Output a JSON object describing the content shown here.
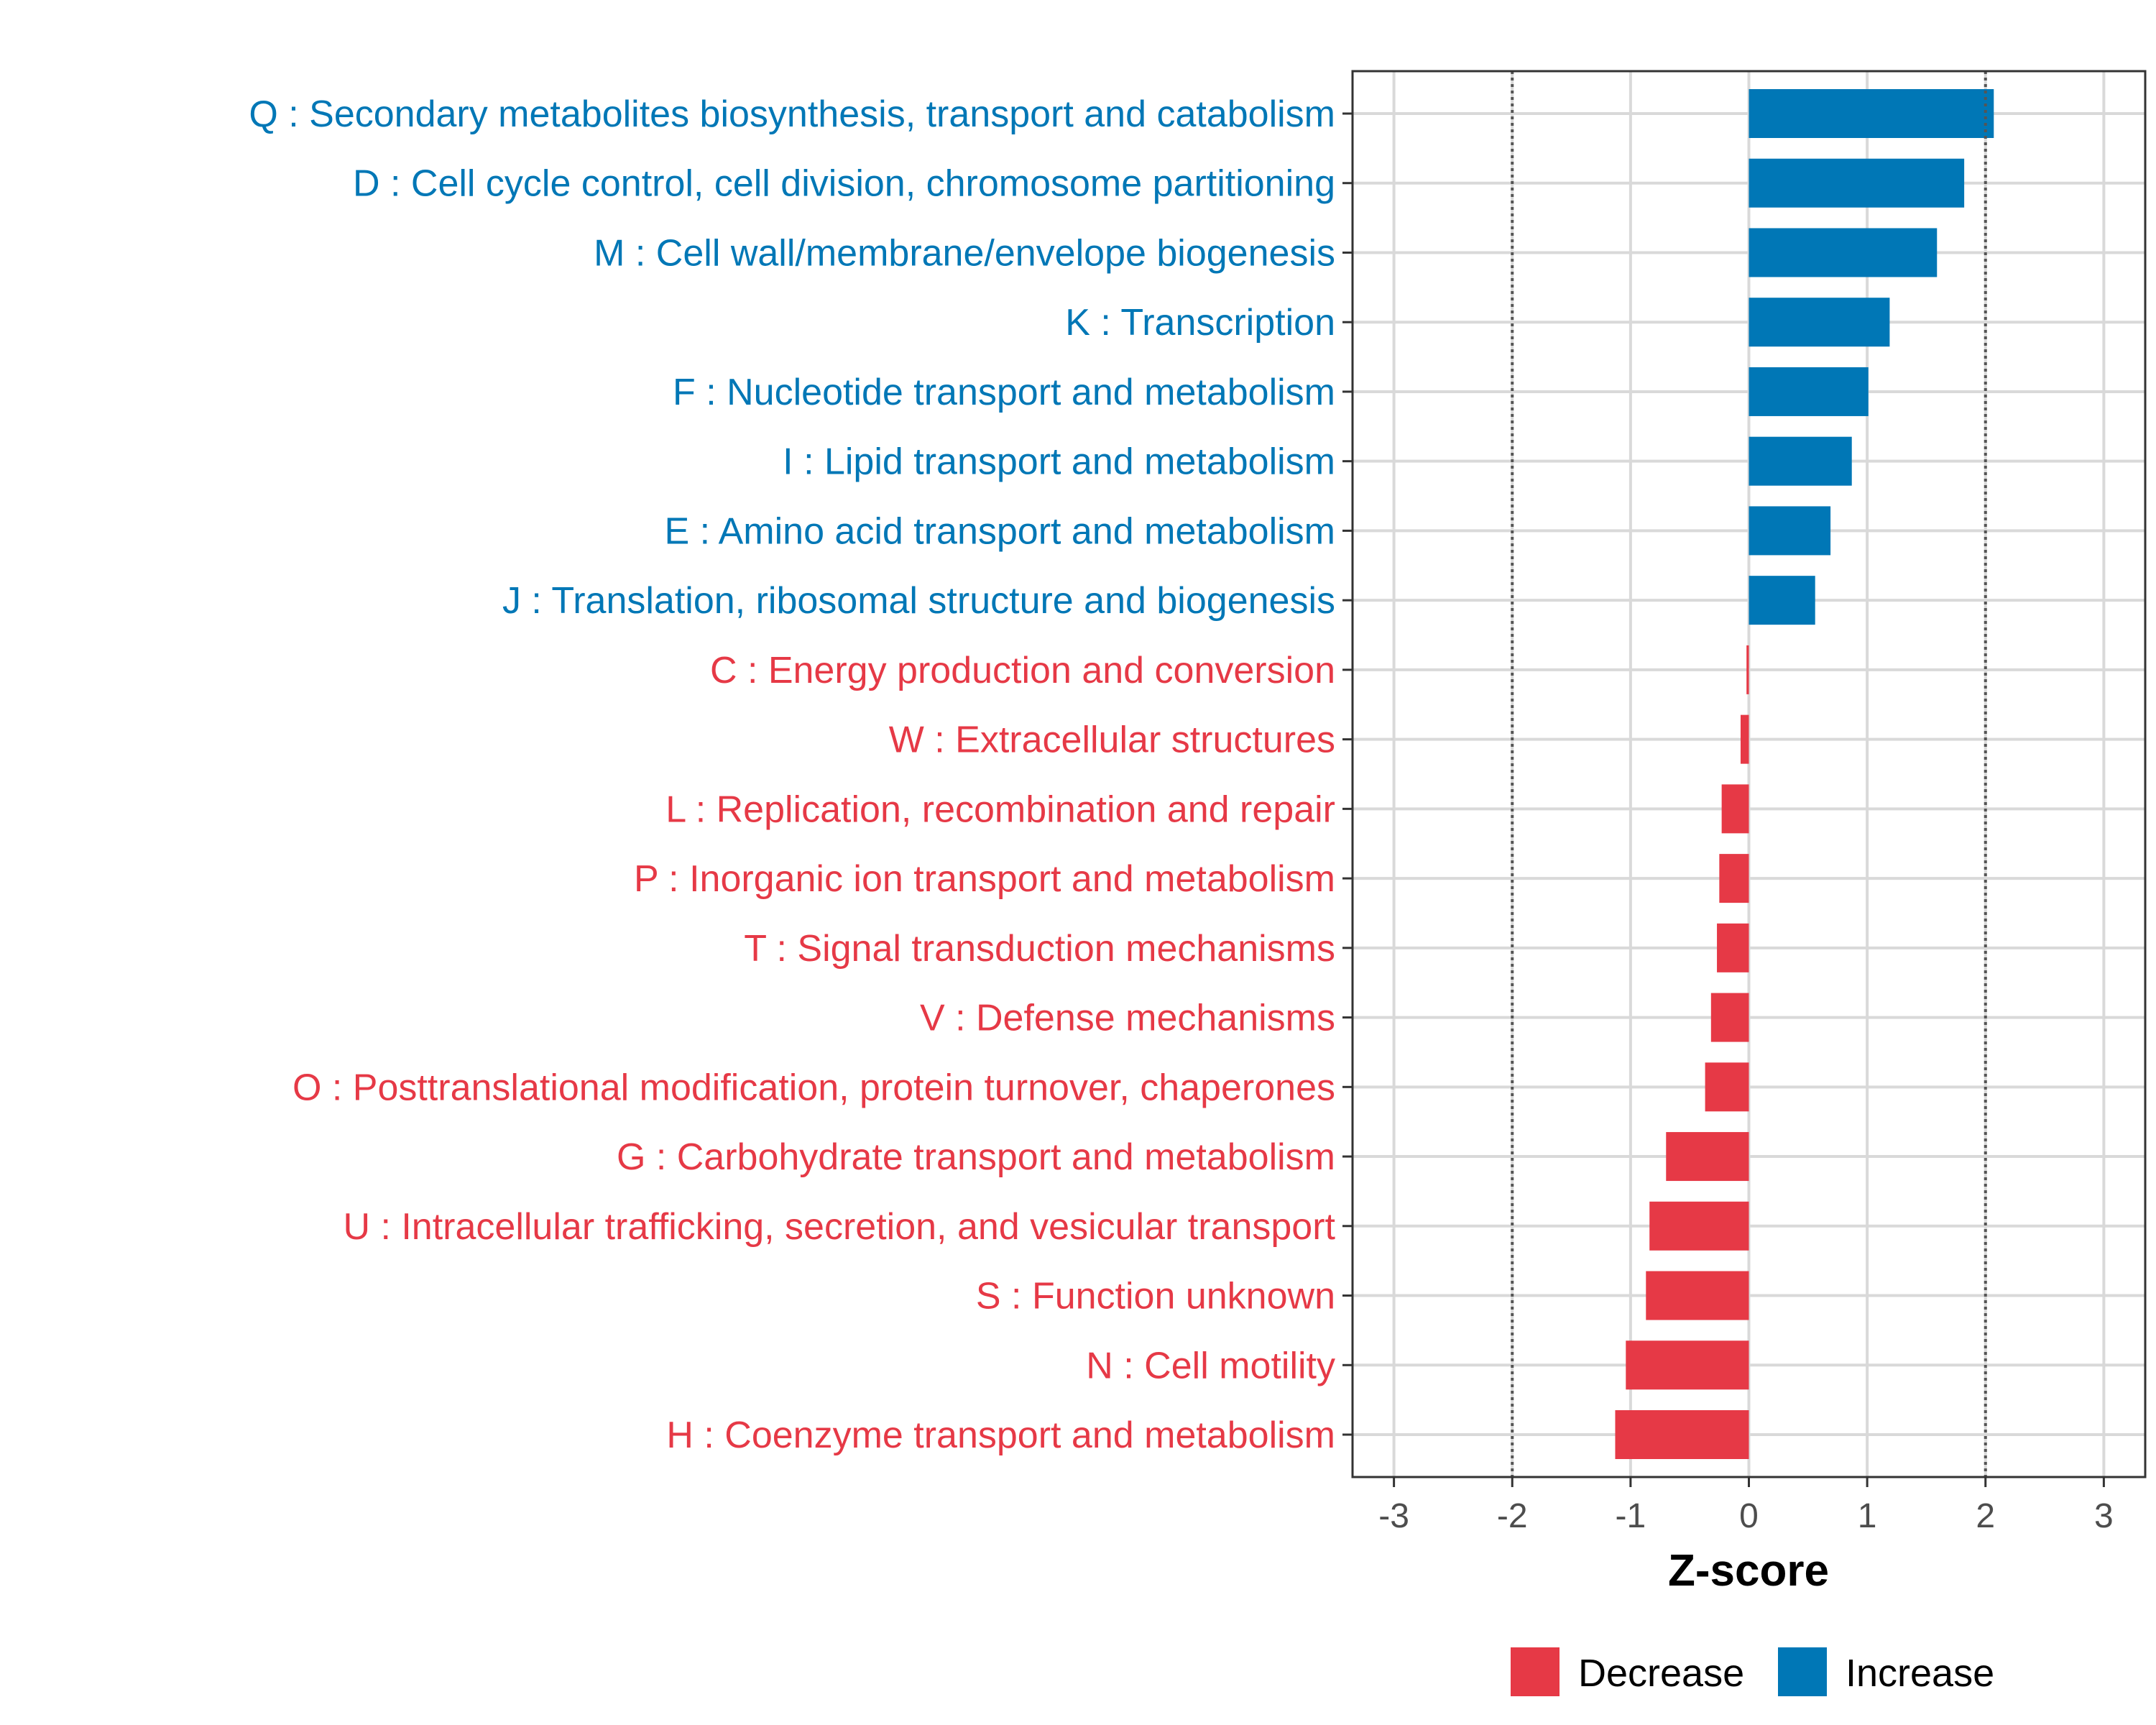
{
  "chart_data": {
    "type": "bar",
    "orientation": "horizontal",
    "xlabel": "Z-score",
    "ylabel": "",
    "xlim": [
      -3.35,
      3.35
    ],
    "x_ticks": [
      -3,
      -2,
      -1,
      0,
      1,
      2,
      3
    ],
    "x_tick_labels": [
      "-3",
      "-2",
      "-1",
      "0",
      "1",
      "2",
      "3"
    ],
    "reference_lines": [
      -2,
      2
    ],
    "grid": true,
    "categories": [
      "Q : Secondary metabolites biosynthesis, transport and catabolism",
      "D : Cell cycle control, cell division, chromosome partitioning",
      "M : Cell wall/membrane/envelope biogenesis",
      "K : Transcription",
      "F : Nucleotide transport and metabolism",
      "I : Lipid transport and metabolism",
      "E : Amino acid transport and metabolism",
      "J : Translation, ribosomal structure and biogenesis",
      "C : Energy production and conversion",
      "W : Extracellular structures",
      "L : Replication, recombination and repair",
      "P : Inorganic ion transport and metabolism",
      "T : Signal transduction mechanisms",
      "V : Defense mechanisms",
      "O : Posttranslational modification, protein turnover, chaperones",
      "G : Carbohydrate transport and metabolism",
      "U : Intracellular trafficking, secretion, and vesicular transport",
      "S : Function unknown",
      "N : Cell motility",
      "H : Coenzyme transport and metabolism"
    ],
    "values": [
      2.07,
      1.82,
      1.59,
      1.19,
      1.01,
      0.87,
      0.69,
      0.56,
      -0.02,
      -0.07,
      -0.23,
      -0.25,
      -0.27,
      -0.32,
      -0.37,
      -0.7,
      -0.84,
      -0.87,
      -1.04,
      -1.13
    ],
    "groups": [
      "Increase",
      "Increase",
      "Increase",
      "Increase",
      "Increase",
      "Increase",
      "Increase",
      "Increase",
      "Decrease",
      "Decrease",
      "Decrease",
      "Decrease",
      "Decrease",
      "Decrease",
      "Decrease",
      "Decrease",
      "Decrease",
      "Decrease",
      "Decrease",
      "Decrease"
    ],
    "legend": {
      "position": "bottom",
      "entries": [
        {
          "label": "Decrease",
          "color": "#E63946"
        },
        {
          "label": "Increase",
          "color": "#0077B6"
        }
      ]
    },
    "colors": {
      "Increase": "#0077B6",
      "Decrease": "#E63946",
      "grid": "#D9D9D9",
      "panel_border": "#333333",
      "reference_line": "#555555"
    }
  }
}
